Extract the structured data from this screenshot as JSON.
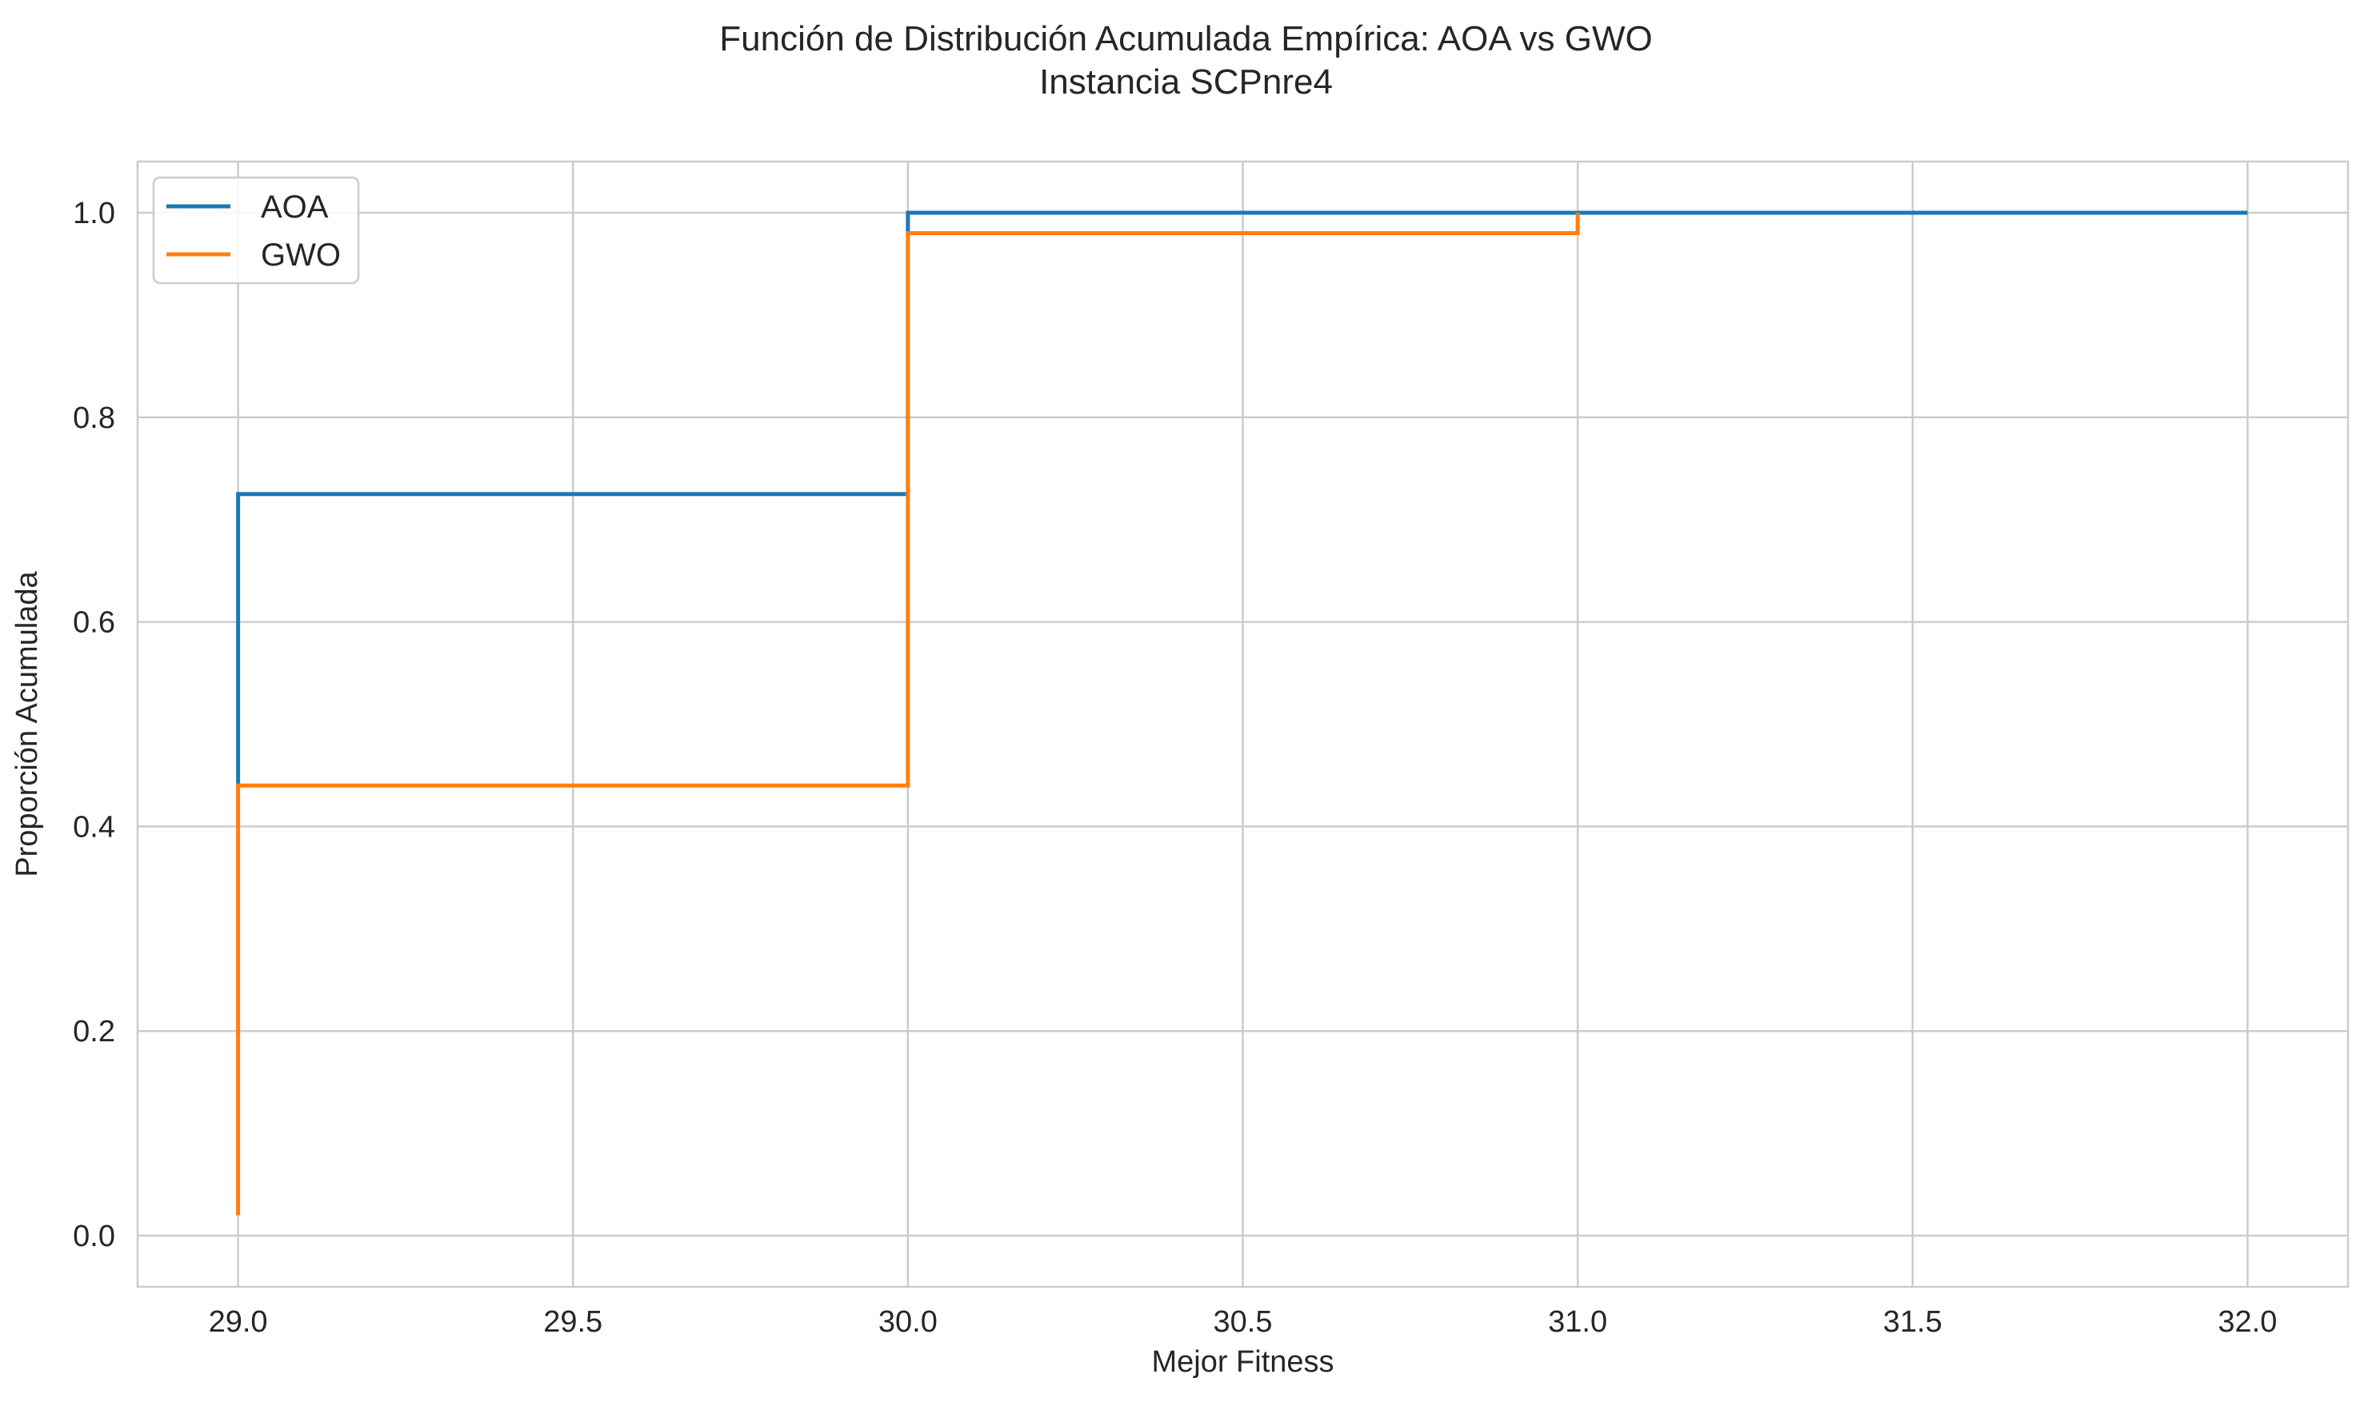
{
  "chart_data": {
    "type": "line",
    "step": "post",
    "title": "Función de Distribución Acumulada Empírica: AOA vs GWO",
    "subtitle": "Instancia SCPnre4",
    "xlabel": "Mejor Fitness",
    "ylabel": "Proporción Acumulada",
    "xlim": [
      28.85,
      32.15
    ],
    "ylim": [
      -0.05,
      1.05
    ],
    "xticks": [
      29.0,
      29.5,
      30.0,
      30.5,
      31.0,
      31.5,
      32.0
    ],
    "xtick_labels": [
      "29.0",
      "29.5",
      "30.0",
      "30.5",
      "31.0",
      "31.5",
      "32.0"
    ],
    "yticks": [
      0.0,
      0.2,
      0.4,
      0.6,
      0.8,
      1.0
    ],
    "ytick_labels": [
      "0.0",
      "0.2",
      "0.4",
      "0.6",
      "0.8",
      "1.0"
    ],
    "grid": true,
    "legend_position": "top-left",
    "series": [
      {
        "name": "AOA",
        "color": "#1f77b4",
        "points": [
          [
            29.0,
            0.44
          ],
          [
            29.0,
            0.725
          ],
          [
            30.0,
            0.725
          ],
          [
            30.0,
            1.0
          ],
          [
            32.0,
            1.0
          ]
        ]
      },
      {
        "name": "GWO",
        "color": "#ff7f0e",
        "points": [
          [
            29.0,
            0.02
          ],
          [
            29.0,
            0.44
          ],
          [
            30.0,
            0.44
          ],
          [
            30.0,
            0.98
          ],
          [
            31.0,
            0.98
          ],
          [
            31.0,
            1.0
          ]
        ]
      }
    ]
  }
}
